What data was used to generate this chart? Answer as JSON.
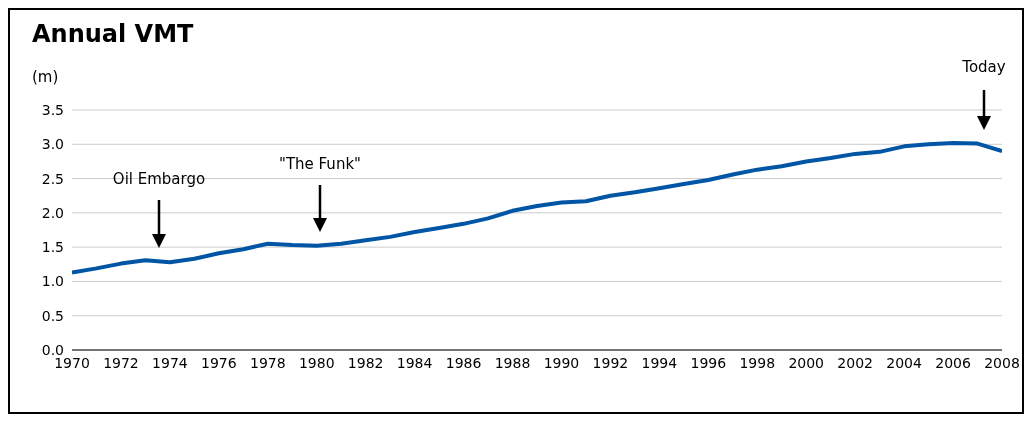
{
  "chart_data": {
    "type": "line",
    "title": "Annual VMT",
    "ylabel": "(m)",
    "x": [
      1970,
      1971,
      1972,
      1973,
      1974,
      1975,
      1976,
      1977,
      1978,
      1979,
      1980,
      1981,
      1982,
      1983,
      1984,
      1985,
      1986,
      1987,
      1988,
      1989,
      1990,
      1991,
      1992,
      1993,
      1994,
      1995,
      1996,
      1997,
      1998,
      1999,
      2000,
      2001,
      2002,
      2003,
      2004,
      2005,
      2006,
      2007,
      2008
    ],
    "series": [
      {
        "color": "#0055a5",
        "values": [
          1.13,
          1.19,
          1.26,
          1.31,
          1.28,
          1.33,
          1.41,
          1.47,
          1.55,
          1.53,
          1.52,
          1.55,
          1.6,
          1.65,
          1.72,
          1.78,
          1.84,
          1.92,
          2.03,
          2.1,
          2.15,
          2.17,
          2.25,
          2.3,
          2.36,
          2.42,
          2.48,
          2.56,
          2.63,
          2.68,
          2.75,
          2.8,
          2.86,
          2.89,
          2.97,
          3.0,
          3.02,
          3.01,
          2.9
        ]
      }
    ],
    "xlim": [
      1970,
      2008
    ],
    "xticks": [
      1970,
      1972,
      1974,
      1976,
      1978,
      1980,
      1982,
      1984,
      1986,
      1988,
      1990,
      1992,
      1994,
      1996,
      1998,
      2000,
      2002,
      2004,
      2006,
      2008
    ],
    "ylim": [
      0,
      3.5
    ],
    "yticks": [
      {
        "value": 0,
        "label": "0.0"
      },
      0.5,
      {
        "value": 1,
        "label": "1.0"
      },
      1.5,
      {
        "value": 2,
        "label": "2.0"
      },
      2.5,
      {
        "value": 3,
        "label": "3.0"
      },
      3.5
    ],
    "grid": "y",
    "marker": "none",
    "line_style": "solid",
    "annotations": [
      "Oil Embargo",
      "\"The Funk\"",
      "Today"
    ]
  }
}
